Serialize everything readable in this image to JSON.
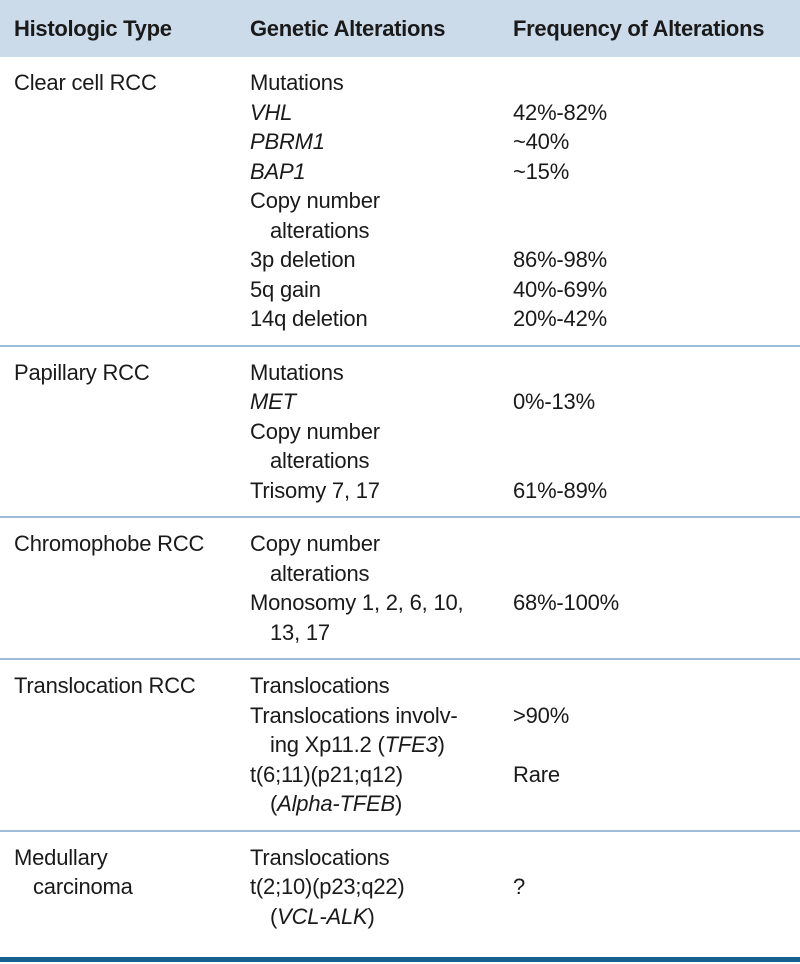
{
  "colors": {
    "header_bg": "#ccdbea",
    "divider": "#9fbdd8",
    "bottom_rule": "#16618f",
    "text": "#1a1a1a",
    "background": "#ffffff"
  },
  "table": {
    "headers": [
      {
        "label": "Histologic Type"
      },
      {
        "label": "Genetic Alterations"
      },
      {
        "label": "Frequency of Alterations"
      }
    ],
    "sections": [
      {
        "histologic_type": [
          {
            "t": "Clear cell RCC"
          }
        ],
        "rows": [
          {
            "segments": [
              {
                "t": "Mutations"
              }
            ],
            "frequency": ""
          },
          {
            "segments": [
              {
                "t": "VHL",
                "i": true
              }
            ],
            "frequency": "42%-82%"
          },
          {
            "segments": [
              {
                "t": "PBRM1",
                "i": true
              }
            ],
            "frequency": "~40%"
          },
          {
            "segments": [
              {
                "t": "BAP1",
                "i": true
              }
            ],
            "frequency": "~15%"
          },
          {
            "segments": [
              {
                "t": "Copy number"
              }
            ],
            "frequency": ""
          },
          {
            "segments": [
              {
                "t": "alterations"
              }
            ],
            "indent": true,
            "frequency": ""
          },
          {
            "segments": [
              {
                "t": "3p deletion"
              }
            ],
            "frequency": "86%-98%"
          },
          {
            "segments": [
              {
                "t": "5q gain"
              }
            ],
            "frequency": "40%-69%"
          },
          {
            "segments": [
              {
                "t": "14q deletion"
              }
            ],
            "frequency": "20%-42%"
          }
        ]
      },
      {
        "histologic_type": [
          {
            "t": "Papillary RCC"
          }
        ],
        "rows": [
          {
            "segments": [
              {
                "t": "Mutations"
              }
            ],
            "frequency": ""
          },
          {
            "segments": [
              {
                "t": "MET",
                "i": true
              }
            ],
            "frequency": "0%-13%"
          },
          {
            "segments": [
              {
                "t": "Copy number"
              }
            ],
            "frequency": ""
          },
          {
            "segments": [
              {
                "t": "alterations"
              }
            ],
            "indent": true,
            "frequency": ""
          },
          {
            "segments": [
              {
                "t": "Trisomy 7, 17"
              }
            ],
            "frequency": "61%-89%"
          }
        ]
      },
      {
        "histologic_type": [
          {
            "t": "Chromophobe RCC"
          }
        ],
        "rows": [
          {
            "segments": [
              {
                "t": "Copy number"
              }
            ],
            "frequency": ""
          },
          {
            "segments": [
              {
                "t": "alterations"
              }
            ],
            "indent": true,
            "frequency": ""
          },
          {
            "segments": [
              {
                "t": "Monosomy 1, 2, 6, 10,"
              }
            ],
            "frequency": "68%-100%"
          },
          {
            "segments": [
              {
                "t": "13, 17"
              }
            ],
            "indent": true,
            "frequency": ""
          }
        ]
      },
      {
        "histologic_type": [
          {
            "t": "Translocation RCC"
          }
        ],
        "rows": [
          {
            "segments": [
              {
                "t": "Translocations"
              }
            ],
            "frequency": ""
          },
          {
            "segments": [
              {
                "t": "Translocations involv-"
              }
            ],
            "frequency": ">90%"
          },
          {
            "segments": [
              {
                "t": "ing Xp11.2 ("
              },
              {
                "t": "TFE3",
                "i": true
              },
              {
                "t": ")"
              }
            ],
            "indent": true,
            "frequency": ""
          },
          {
            "segments": [
              {
                "t": "t(6;11)(p21;q12)"
              }
            ],
            "frequency": "Rare"
          },
          {
            "segments": [
              {
                "t": "("
              },
              {
                "t": "Alpha-TFEB",
                "i": true
              },
              {
                "t": ")"
              }
            ],
            "indent": true,
            "frequency": ""
          }
        ]
      },
      {
        "histologic_type": [
          {
            "t": "Medullary"
          },
          {
            "t": "carcinoma",
            "indent": true
          }
        ],
        "rows": [
          {
            "segments": [
              {
                "t": "Translocations"
              }
            ],
            "frequency": ""
          },
          {
            "segments": [
              {
                "t": "t(2;10)(p23;q22)"
              }
            ],
            "frequency": "?"
          },
          {
            "segments": [
              {
                "t": "("
              },
              {
                "t": "VCL-ALK",
                "i": true
              },
              {
                "t": ")"
              }
            ],
            "indent": true,
            "frequency": ""
          }
        ]
      }
    ]
  }
}
